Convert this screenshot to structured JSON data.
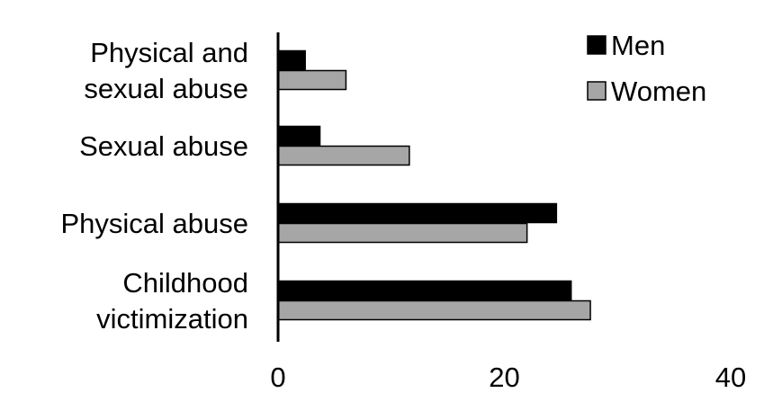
{
  "chart_data": {
    "type": "bar",
    "orientation": "horizontal",
    "categories": [
      [
        "Physical and",
        "sexual abuse"
      ],
      [
        "Sexual abuse"
      ],
      [
        "Physical abuse"
      ],
      [
        "Childhood",
        "victimization"
      ]
    ],
    "series": [
      {
        "name": "Men",
        "color": "#000000",
        "values": [
          2.4,
          3.7,
          24.6,
          25.9
        ]
      },
      {
        "name": "Women",
        "color": "#a6a6a6",
        "values": [
          6.0,
          11.6,
          22.0,
          27.6
        ]
      }
    ],
    "xlim": [
      0,
      40
    ],
    "xticks": [
      "0",
      "20",
      "40"
    ],
    "legend_position": "top-right",
    "grid": false
  }
}
